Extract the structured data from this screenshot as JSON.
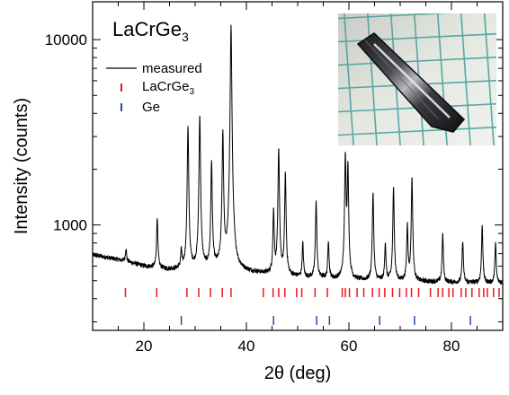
{
  "chart_data": {
    "type": "line",
    "title": "LaCrGe",
    "title_subscript": "3",
    "xlabel": "2θ (deg)",
    "ylabel": "Intensity (counts)",
    "xlim": [
      10,
      90
    ],
    "ylim": [
      270,
      16000
    ],
    "y_scale": "log",
    "x_ticks": [
      20,
      40,
      60,
      80
    ],
    "y_ticks": [
      1000,
      10000
    ],
    "legend": {
      "placement": "top-left",
      "entries": [
        {
          "label": "measured",
          "color": "#000000",
          "marker": "line"
        },
        {
          "label": "LaCrGe",
          "subscript": "3",
          "color": "#e8141a",
          "marker": "tick"
        },
        {
          "label": "Ge",
          "color": "#1f4fa0",
          "marker": "tick"
        }
      ]
    },
    "series": [
      {
        "name": "measured",
        "color": "#000000",
        "background": [
          [
            10,
            690
          ],
          [
            15,
            650
          ],
          [
            20,
            600
          ],
          [
            25,
            575
          ],
          [
            30,
            580
          ],
          [
            35,
            590
          ],
          [
            40,
            560
          ],
          [
            45,
            540
          ],
          [
            50,
            525
          ],
          [
            55,
            515
          ],
          [
            60,
            505
          ],
          [
            70,
            498
          ],
          [
            80,
            490
          ],
          [
            90,
            485
          ]
        ],
        "peaks": [
          [
            16.5,
            750
          ],
          [
            22.6,
            1100
          ],
          [
            27.3,
            720
          ],
          [
            28.6,
            3400
          ],
          [
            30.9,
            3900
          ],
          [
            33.2,
            2200
          ],
          [
            35.4,
            3200
          ],
          [
            37.0,
            12000
          ],
          [
            45.3,
            1200
          ],
          [
            46.3,
            2600
          ],
          [
            47.6,
            1900
          ],
          [
            51.0,
            800
          ],
          [
            53.6,
            1350
          ],
          [
            56.0,
            820
          ],
          [
            59.3,
            2400
          ],
          [
            59.8,
            2100
          ],
          [
            64.7,
            1500
          ],
          [
            67.1,
            800
          ],
          [
            68.7,
            1600
          ],
          [
            71.4,
            1000
          ],
          [
            72.3,
            1800
          ],
          [
            78.3,
            900
          ],
          [
            82.2,
            820
          ],
          [
            86.0,
            1000
          ],
          [
            88.6,
            800
          ]
        ]
      }
    ],
    "reflection_ticks": [
      {
        "name": "LaCrGe3",
        "color": "#e8141a",
        "positions": [
          16.4,
          22.5,
          28.4,
          30.7,
          33.0,
          35.3,
          37.0,
          43.3,
          45.2,
          46.3,
          47.5,
          49.8,
          50.8,
          53.4,
          55.8,
          58.7,
          59.3,
          60.1,
          61.6,
          62.9,
          64.6,
          65.9,
          67.0,
          68.5,
          69.9,
          71.2,
          72.2,
          73.6,
          75.9,
          77.4,
          78.3,
          79.5,
          80.3,
          81.9,
          82.8,
          84.0,
          85.4,
          86.3,
          87.0,
          88.2,
          89.3
        ]
      },
      {
        "name": "Ge",
        "color": "#1f4fa0",
        "positions": [
          27.3,
          45.3,
          53.7,
          56.2,
          66.0,
          72.8,
          83.7
        ]
      }
    ]
  }
}
